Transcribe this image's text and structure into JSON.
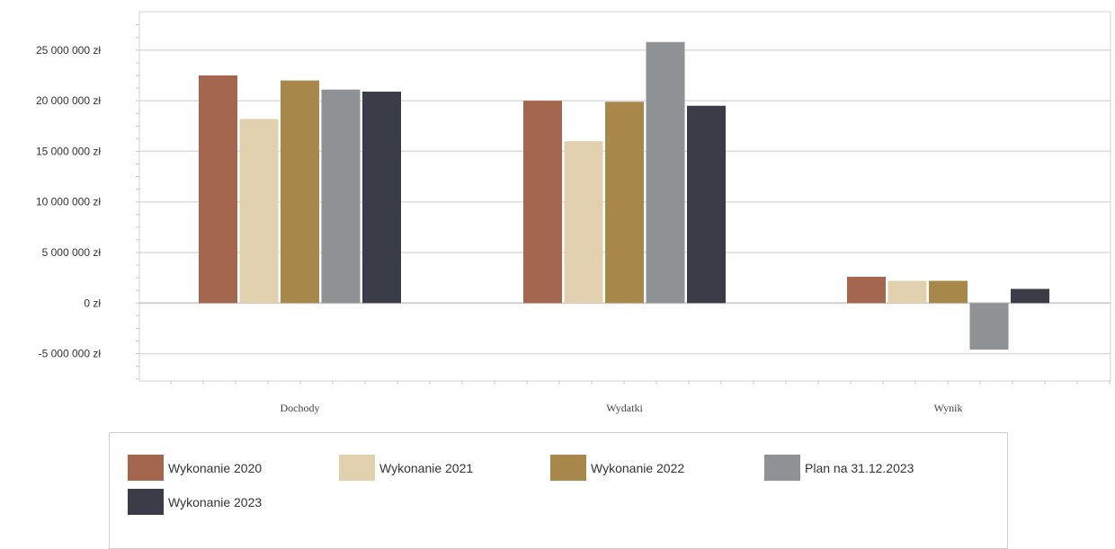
{
  "chart_data": {
    "type": "bar",
    "categories": [
      "Dochody",
      "Wydatki",
      "Wynik"
    ],
    "series": [
      {
        "name": "Wykonanie 2020",
        "color": "#a56650",
        "values": [
          22500000,
          20000000,
          2600000
        ]
      },
      {
        "name": "Wykonanie 2021",
        "color": "#e2d1ae",
        "values": [
          18200000,
          16000000,
          2200000
        ]
      },
      {
        "name": "Wykonanie 2022",
        "color": "#a8884a",
        "values": [
          22000000,
          19900000,
          2200000
        ]
      },
      {
        "name": "Plan na 31.12.2023",
        "color": "#8e9294",
        "values": [
          21100000,
          25800000,
          -4600000
        ]
      },
      {
        "name": "Wykonanie 2023",
        "color": "#3a3c47",
        "values": [
          20900000,
          19500000,
          1400000
        ]
      }
    ],
    "yticks": [
      "25 000 000 zł",
      "20 000 000 zł",
      "15 000 000 zł",
      "10 000 000 zł",
      "5 000 000 zł",
      "0 zł",
      "-5 000 000 zł"
    ],
    "ytick_values": [
      25000000,
      20000000,
      15000000,
      10000000,
      5000000,
      0,
      -5000000
    ],
    "ylim": [
      -7700000,
      28800000
    ],
    "grid": true,
    "legend_position": "bottom",
    "title": "",
    "xlabel": "",
    "ylabel": ""
  }
}
